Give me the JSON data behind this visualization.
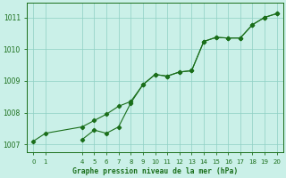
{
  "title": "Graphe pression niveau de la mer (hPa)",
  "background_color": "#caf0e8",
  "grid_color": "#8ecfc4",
  "line_color": "#1a6e1a",
  "xlim": [
    -0.5,
    20.5
  ],
  "ylim": [
    1006.75,
    1011.45
  ],
  "xticks": [
    0,
    1,
    4,
    5,
    6,
    7,
    8,
    9,
    10,
    11,
    12,
    13,
    14,
    15,
    16,
    17,
    18,
    19,
    20
  ],
  "yticks": [
    1007,
    1008,
    1009,
    1010,
    1011
  ],
  "line1_x": [
    0,
    1,
    4,
    5,
    6,
    7,
    8,
    9,
    10,
    11,
    12,
    13,
    14,
    15,
    16,
    17,
    18,
    19,
    20
  ],
  "line1_y": [
    1007.1,
    1007.35,
    1007.55,
    1007.75,
    1007.95,
    1008.2,
    1008.35,
    1008.88,
    1009.2,
    1009.15,
    1009.28,
    1009.32,
    1010.24,
    1010.37,
    1010.35,
    1010.35,
    1010.77,
    1011.0,
    1011.12
  ],
  "line2_x": [
    4,
    5,
    6,
    7,
    8,
    9,
    10,
    11,
    12,
    13,
    14,
    15,
    16,
    17,
    18,
    19,
    20
  ],
  "line2_y": [
    1007.15,
    1007.45,
    1007.35,
    1007.55,
    1008.3,
    1008.88,
    1009.2,
    1009.15,
    1009.28,
    1009.32,
    1010.24,
    1010.37,
    1010.35,
    1010.35,
    1010.77,
    1011.0,
    1011.12
  ]
}
